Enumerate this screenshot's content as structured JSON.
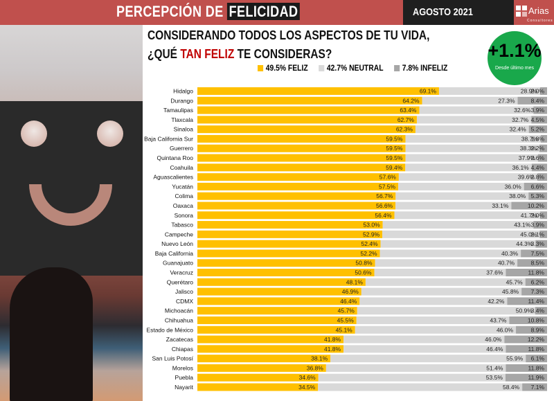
{
  "header": {
    "title_pre": "PERCEPCIÓN DE ",
    "title_highlight": "FELICIDAD",
    "date": "AGOSTO 2021",
    "logo_name": "Arias",
    "logo_sub": "Consultores"
  },
  "question": {
    "line1": "CONSIDERANDO TODOS LOS ASPECTOS DE TU VIDA,",
    "line2_pre": "¿QUÉ ",
    "line2_highlight": "TAN FELIZ",
    "line2_post": " TE CONSIDERAS?"
  },
  "legend": [
    {
      "label": "49.5% FELIZ",
      "color": "#ffc000"
    },
    {
      "label": "42.7% NEUTRAL",
      "color": "#d9d9d9"
    },
    {
      "label": "7.8% INFELIZ",
      "color": "#a6a6a6"
    }
  ],
  "badge": {
    "value": "+1.1%",
    "subtitle": "Desde último mes"
  },
  "colors": {
    "feliz": "#ffc000",
    "neutral": "#d9d9d9",
    "infeliz": "#a6a6a6",
    "header": "#c0504d",
    "badge": "#19a84b"
  },
  "chart_data": {
    "type": "bar",
    "stacked": true,
    "orientation": "horizontal",
    "percent_format": "one-decimal",
    "categories": [
      "Hidalgo",
      "Durango",
      "Tamaulipas",
      "Tlaxcala",
      "Sinaloa",
      "Baja California Sur",
      "Guerrero",
      "Quintana Roo",
      "Coahuila",
      "Aguascalientes",
      "Yucatán",
      "Colima",
      "Oaxaca",
      "Sonora",
      "Tabasco",
      "Campeche",
      "Nuevo León",
      "Baja California",
      "Guanajuato",
      "Veracruz",
      "Querétaro",
      "Jalisco",
      "CDMX",
      "Michoacán",
      "Chihuahua",
      "Estado de México",
      "Zacatecas",
      "Chiapas",
      "San Luis Potosí",
      "Morelos",
      "Puebla",
      "Nayarit"
    ],
    "series": [
      {
        "name": "FELIZ",
        "values": [
          69.1,
          64.2,
          63.4,
          62.7,
          62.3,
          59.5,
          59.5,
          59.5,
          59.4,
          57.6,
          57.5,
          56.7,
          56.6,
          56.4,
          53.0,
          52.9,
          52.4,
          52.2,
          50.8,
          50.6,
          48.1,
          46.9,
          46.4,
          45.7,
          45.5,
          45.1,
          41.8,
          41.8,
          38.1,
          36.8,
          34.6,
          34.5
        ]
      },
      {
        "name": "NEUTRAL",
        "values": [
          28.9,
          27.3,
          32.6,
          32.7,
          32.4,
          38.7,
          38.3,
          37.9,
          36.1,
          39.6,
          36.0,
          38.0,
          33.1,
          41.7,
          43.1,
          45.0,
          44.3,
          40.3,
          40.7,
          37.6,
          45.7,
          45.8,
          42.2,
          50.9,
          43.7,
          46.0,
          46.0,
          46.4,
          55.9,
          51.4,
          53.5,
          58.4
        ]
      },
      {
        "name": "INFELIZ",
        "values": [
          2.0,
          8.4,
          3.9,
          4.5,
          5.2,
          1.8,
          2.2,
          2.6,
          4.4,
          2.8,
          6.6,
          5.3,
          10.2,
          2.0,
          3.9,
          2.1,
          3.3,
          7.5,
          8.5,
          11.8,
          6.2,
          7.3,
          11.4,
          3.4,
          10.8,
          8.9,
          12.2,
          11.8,
          6.1,
          11.8,
          11.9,
          7.1
        ]
      }
    ],
    "xlim": [
      0,
      100
    ]
  }
}
